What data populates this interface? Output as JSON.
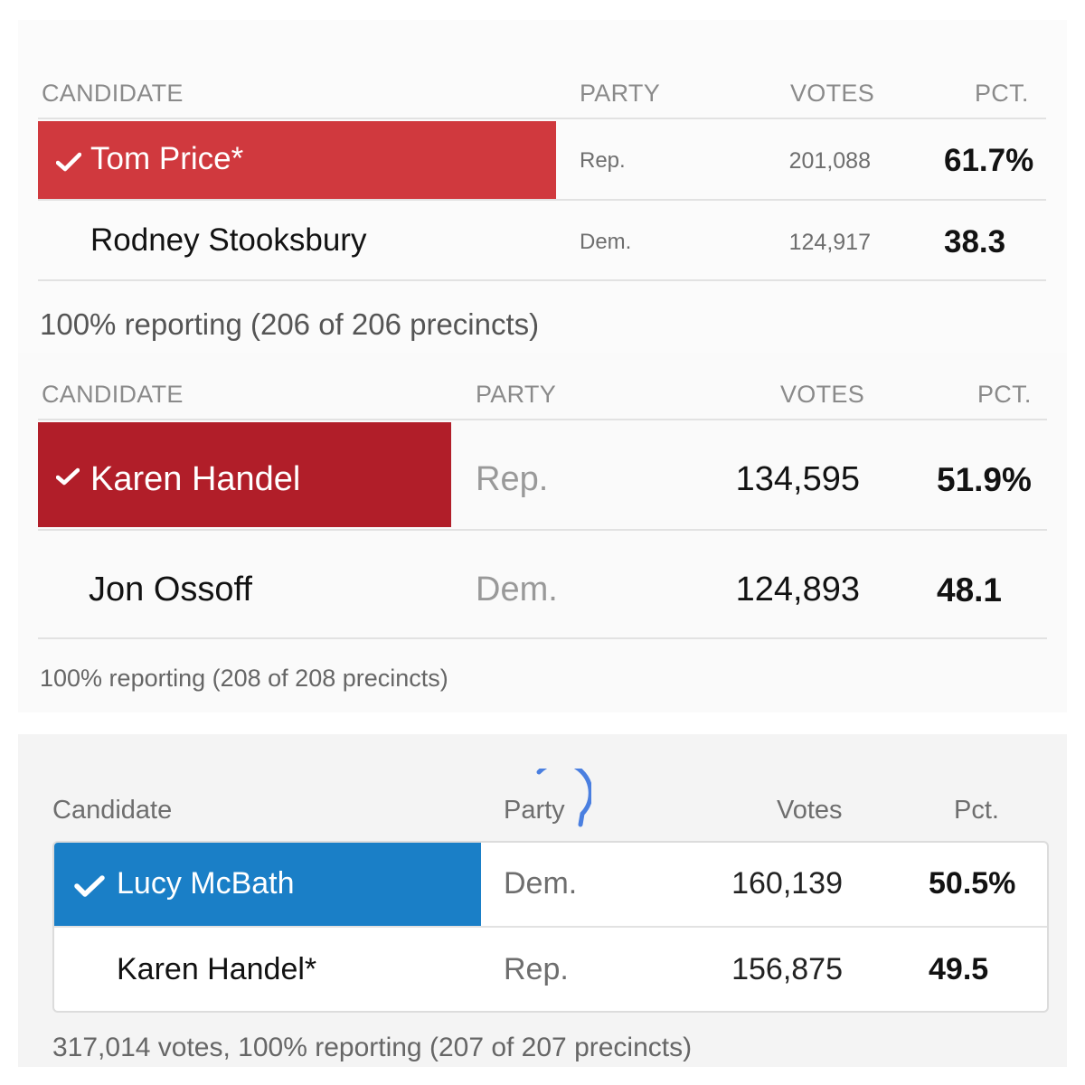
{
  "race1": {
    "headers": {
      "candidate": "CANDIDATE",
      "party": "PARTY",
      "votes": "VOTES",
      "pct": "PCT."
    },
    "rows": [
      {
        "name": "Tom Price*",
        "party": "Rep.",
        "votes": "201,088",
        "pct": "61.7%",
        "winner": true
      },
      {
        "name": "Rodney Stooksbury",
        "party": "Dem.",
        "votes": "124,917",
        "pct": "38.3",
        "winner": false
      }
    ],
    "footer": "100% reporting (206 of 206 precincts)",
    "winner_color": "#d0393e"
  },
  "race2": {
    "headers": {
      "candidate": "CANDIDATE",
      "party": "PARTY",
      "votes": "VOTES",
      "pct": "PCT."
    },
    "rows": [
      {
        "name": "Karen Handel",
        "party": "Rep.",
        "votes": "134,595",
        "pct": "51.9%",
        "winner": true
      },
      {
        "name": "Jon Ossoff",
        "party": "Dem.",
        "votes": "124,893",
        "pct": "48.1",
        "winner": false
      }
    ],
    "footer": "100% reporting (208 of 208 precincts)",
    "winner_color": "#b11e29"
  },
  "race3": {
    "headers": {
      "candidate": "Candidate",
      "party": "Party",
      "votes": "Votes",
      "pct": "Pct."
    },
    "rows": [
      {
        "name": "Lucy McBath",
        "party": "Dem.",
        "votes": "160,139",
        "pct": "50.5%",
        "winner": true
      },
      {
        "name": "Karen Handel*",
        "party": "Rep.",
        "votes": "156,875",
        "pct": "49.5",
        "winner": false
      }
    ],
    "footer": "317,014 votes, 100% reporting (207 of 207 precincts)",
    "winner_color": "#1a7fc7",
    "spinner_color": "#4a7fe0"
  },
  "icons": {
    "check": "checkmark-icon",
    "spinner": "loading-spinner-icon"
  }
}
